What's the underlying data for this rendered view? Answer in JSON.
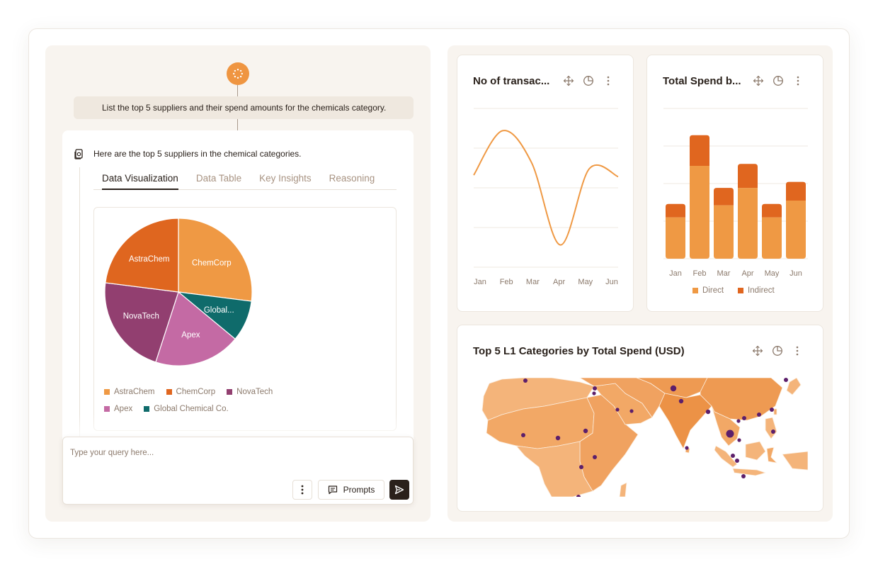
{
  "chat": {
    "user_message": "List the top 5 suppliers and their spend amounts for the chemicals category.",
    "answer_intro": "Here are the top 5 suppliers in the chemical categories.",
    "tabs": [
      {
        "label": "Data Visualization",
        "active": true
      },
      {
        "label": "Data Table",
        "active": false
      },
      {
        "label": "Key Insights",
        "active": false
      },
      {
        "label": "Reasoning",
        "active": false
      }
    ],
    "composer": {
      "placeholder": "Type your query here...",
      "prompts_label": "Prompts"
    }
  },
  "charts": {
    "transactions": {
      "title": "No of transac...",
      "x_labels": [
        "Jan",
        "Feb",
        "Mar",
        "Apr",
        "May",
        "Jun"
      ]
    },
    "spend": {
      "title": "Total Spend b...",
      "x_labels": [
        "Jan",
        "Feb",
        "Mar",
        "Apr",
        "May",
        "Jun"
      ],
      "legend": [
        {
          "label": "Direct",
          "color": "#ef9944"
        },
        {
          "label": "Indirect",
          "color": "#e0661f"
        }
      ]
    },
    "map": {
      "title": "Top 5 L1 Categories by Total Spend (USD)"
    }
  },
  "chart_data": [
    {
      "type": "pie",
      "labels": [
        "ChemCorp",
        "Global...",
        "Apex",
        "NovaTech",
        "AstraChem"
      ],
      "legend_labels": [
        "AstraChem",
        "ChemCorp",
        "NovaTech",
        "Apex",
        "Global Chemical Co."
      ],
      "values": [
        27,
        9,
        19,
        22,
        23
      ],
      "colors": [
        "#ef9944",
        "#0f6b6b",
        "#c46aa4",
        "#923f70",
        "#df661f"
      ],
      "legend_colors": [
        "#df661f",
        "#e0661f",
        "#923f70",
        "#c46aa4",
        "#0f6b6b"
      ]
    },
    {
      "type": "line",
      "categories": [
        "Jan",
        "Feb",
        "Mar",
        "Apr",
        "May",
        "Jun"
      ],
      "values": [
        58,
        86,
        66,
        14,
        62,
        57
      ],
      "ylim": [
        0,
        100
      ],
      "color": "#ef9944"
    },
    {
      "type": "bar",
      "categories": [
        "Jan",
        "Feb",
        "Mar",
        "Apr",
        "May",
        "Jun"
      ],
      "series": [
        {
          "name": "Direct",
          "values": [
            62,
            139,
            80,
            106,
            62,
            87
          ]
        },
        {
          "name": "Indirect",
          "values": [
            20,
            46,
            26,
            36,
            20,
            28
          ]
        }
      ],
      "ylim": [
        0,
        225
      ]
    }
  ]
}
